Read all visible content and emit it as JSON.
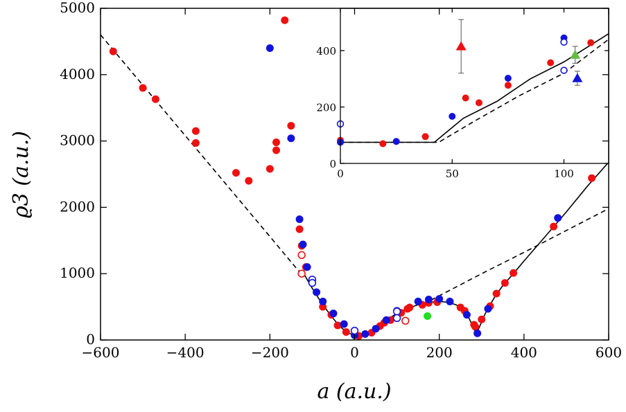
{
  "chart_data": {
    "type": "scatter",
    "xlabel": "a (a.u.)",
    "ylabel": "ϱ3 (a.u.)",
    "xlim": [
      -600,
      600
    ],
    "ylim": [
      0,
      5000
    ],
    "grid": false,
    "x_ticks": [
      -600,
      -400,
      -200,
      0,
      200,
      400,
      600
    ],
    "x_tick_labels": [
      "−600",
      "−400",
      "−200",
      "0",
      "200",
      "400",
      "600"
    ],
    "y_ticks": [
      0,
      1000,
      2000,
      3000,
      4000,
      5000
    ],
    "y_tick_labels": [
      "0",
      "1000",
      "2000",
      "3000",
      "4000",
      "5000"
    ],
    "colors": {
      "red": "#ee1111",
      "blue": "#1212dd",
      "green": "#22dd22",
      "green_triangle": "#66bb44",
      "line": "#000000",
      "errorbar": "#555555"
    },
    "series": [
      {
        "color": "red",
        "marker": "filled-circle",
        "points": [
          [
            -570,
            4350
          ],
          [
            -500,
            3800
          ],
          [
            -470,
            3630
          ],
          [
            -375,
            3150
          ],
          [
            -375,
            2970
          ],
          [
            -280,
            2520
          ],
          [
            -250,
            2400
          ],
          [
            -200,
            2580
          ],
          [
            -185,
            2860
          ],
          [
            -185,
            2980
          ],
          [
            -165,
            4820
          ],
          [
            -150,
            3230
          ],
          [
            -130,
            1670
          ],
          [
            -125,
            1420
          ],
          [
            -115,
            1100
          ],
          [
            -75,
            500
          ],
          [
            -55,
            380
          ],
          [
            -40,
            220
          ],
          [
            -20,
            120
          ],
          [
            10,
            60
          ],
          [
            40,
            110
          ],
          [
            60,
            210
          ],
          [
            70,
            260
          ],
          [
            85,
            300
          ],
          [
            110,
            410
          ],
          [
            125,
            470
          ],
          [
            130,
            490
          ],
          [
            160,
            530
          ],
          [
            175,
            560
          ],
          [
            195,
            570
          ],
          [
            250,
            490
          ],
          [
            260,
            440
          ],
          [
            282,
            230
          ],
          [
            285,
            200
          ],
          [
            300,
            310
          ],
          [
            320,
            510
          ],
          [
            335,
            700
          ],
          [
            355,
            860
          ],
          [
            375,
            1010
          ],
          [
            470,
            1710
          ],
          [
            560,
            2440
          ]
        ]
      },
      {
        "color": "red",
        "marker": "open-circle",
        "points": [
          [
            -125,
            1280
          ],
          [
            -125,
            1000
          ],
          [
            120,
            290
          ]
        ]
      },
      {
        "color": "blue",
        "marker": "filled-circle",
        "points": [
          [
            -200,
            4400
          ],
          [
            -150,
            3040
          ],
          [
            -130,
            1820
          ],
          [
            -122,
            1440
          ],
          [
            -112,
            1100
          ],
          [
            -90,
            720
          ],
          [
            -75,
            580
          ],
          [
            -50,
            400
          ],
          [
            -25,
            240
          ],
          [
            0,
            70
          ],
          [
            25,
            90
          ],
          [
            50,
            170
          ],
          [
            75,
            300
          ],
          [
            100,
            440
          ],
          [
            150,
            580
          ],
          [
            175,
            610
          ],
          [
            200,
            620
          ],
          [
            225,
            580
          ],
          [
            265,
            380
          ],
          [
            290,
            100
          ],
          [
            315,
            470
          ],
          [
            480,
            1840
          ]
        ]
      },
      {
        "color": "blue",
        "marker": "open-circle",
        "points": [
          [
            -100,
            910
          ],
          [
            -100,
            860
          ],
          [
            0,
            140
          ],
          [
            100,
            430
          ],
          [
            100,
            330
          ]
        ]
      },
      {
        "color": "green",
        "marker": "filled-circle",
        "points": [
          [
            172,
            360
          ]
        ]
      }
    ],
    "lines": [
      {
        "style": "solid",
        "points": [
          [
            -120,
            1000
          ],
          [
            -100,
            780
          ],
          [
            -80,
            580
          ],
          [
            -60,
            400
          ],
          [
            -40,
            240
          ],
          [
            -20,
            120
          ],
          [
            0,
            70
          ],
          [
            20,
            80
          ],
          [
            40,
            140
          ],
          [
            60,
            230
          ],
          [
            80,
            320
          ],
          [
            100,
            400
          ],
          [
            120,
            460
          ],
          [
            140,
            510
          ],
          [
            160,
            550
          ],
          [
            180,
            570
          ],
          [
            200,
            580
          ],
          [
            220,
            570
          ],
          [
            240,
            530
          ],
          [
            255,
            460
          ],
          [
            270,
            330
          ],
          [
            280,
            200
          ],
          [
            287,
            80
          ],
          [
            295,
            200
          ],
          [
            310,
            420
          ],
          [
            330,
            640
          ],
          [
            350,
            820
          ],
          [
            375,
            1000
          ],
          [
            400,
            1190
          ],
          [
            450,
            1560
          ],
          [
            500,
            1930
          ],
          [
            550,
            2320
          ],
          [
            600,
            2680
          ]
        ]
      },
      {
        "style": "dashed",
        "points": [
          [
            -600,
            4600
          ],
          [
            -500,
            3840
          ],
          [
            -400,
            3080
          ],
          [
            -300,
            2320
          ],
          [
            -200,
            1560
          ],
          [
            -140,
            1100
          ],
          [
            -120,
            960
          ]
        ]
      },
      {
        "style": "dashed",
        "points": [
          [
            180,
            600
          ],
          [
            300,
            1000
          ],
          [
            400,
            1320
          ],
          [
            500,
            1650
          ],
          [
            600,
            1980
          ]
        ]
      }
    ],
    "inset": {
      "xlim": [
        0,
        120
      ],
      "ylim": [
        0,
        550
      ],
      "x_ticks": [
        0,
        50,
        100
      ],
      "x_tick_labels": [
        "0",
        "50",
        "100"
      ],
      "y_ticks": [
        0,
        200,
        400
      ],
      "y_tick_labels": [
        "0",
        "200",
        "400"
      ],
      "series": [
        {
          "color": "red",
          "marker": "filled-circle",
          "points": [
            [
              0,
              82
            ],
            [
              19,
              70
            ],
            [
              38,
              95
            ],
            [
              56,
              232
            ],
            [
              62,
              215
            ],
            [
              75,
              277
            ],
            [
              94,
              357
            ],
            [
              112,
              428
            ]
          ]
        },
        {
          "color": "blue",
          "marker": "filled-circle",
          "points": [
            [
              0,
              75
            ],
            [
              25,
              78
            ],
            [
              50,
              167
            ],
            [
              75,
              302
            ],
            [
              100,
              445
            ]
          ]
        },
        {
          "color": "blue",
          "marker": "open-circle",
          "points": [
            [
              0,
              140
            ],
            [
              100,
              430
            ],
            [
              100,
              330
            ]
          ]
        },
        {
          "color": "red",
          "marker": "filled-triangle",
          "points": [
            [
              54,
              415
            ]
          ],
          "error": [
            95
          ]
        },
        {
          "color": "green_triangle",
          "marker": "filled-triangle",
          "points": [
            [
              105,
              385
            ]
          ],
          "error": [
            30
          ]
        },
        {
          "color": "blue",
          "marker": "filled-triangle",
          "points": [
            [
              106,
              302
            ]
          ],
          "error": [
            25
          ]
        }
      ],
      "lines": [
        {
          "style": "solid",
          "points": [
            [
              0,
              75
            ],
            [
              42,
              75
            ],
            [
              55,
              160
            ],
            [
              70,
              220
            ],
            [
              85,
              300
            ],
            [
              100,
              360
            ],
            [
              120,
              460
            ]
          ]
        },
        {
          "style": "dashed",
          "points": [
            [
              0,
              75
            ],
            [
              44,
              75
            ],
            [
              60,
              150
            ],
            [
              80,
              240
            ],
            [
              100,
              320
            ],
            [
              120,
              440
            ]
          ]
        }
      ]
    }
  }
}
